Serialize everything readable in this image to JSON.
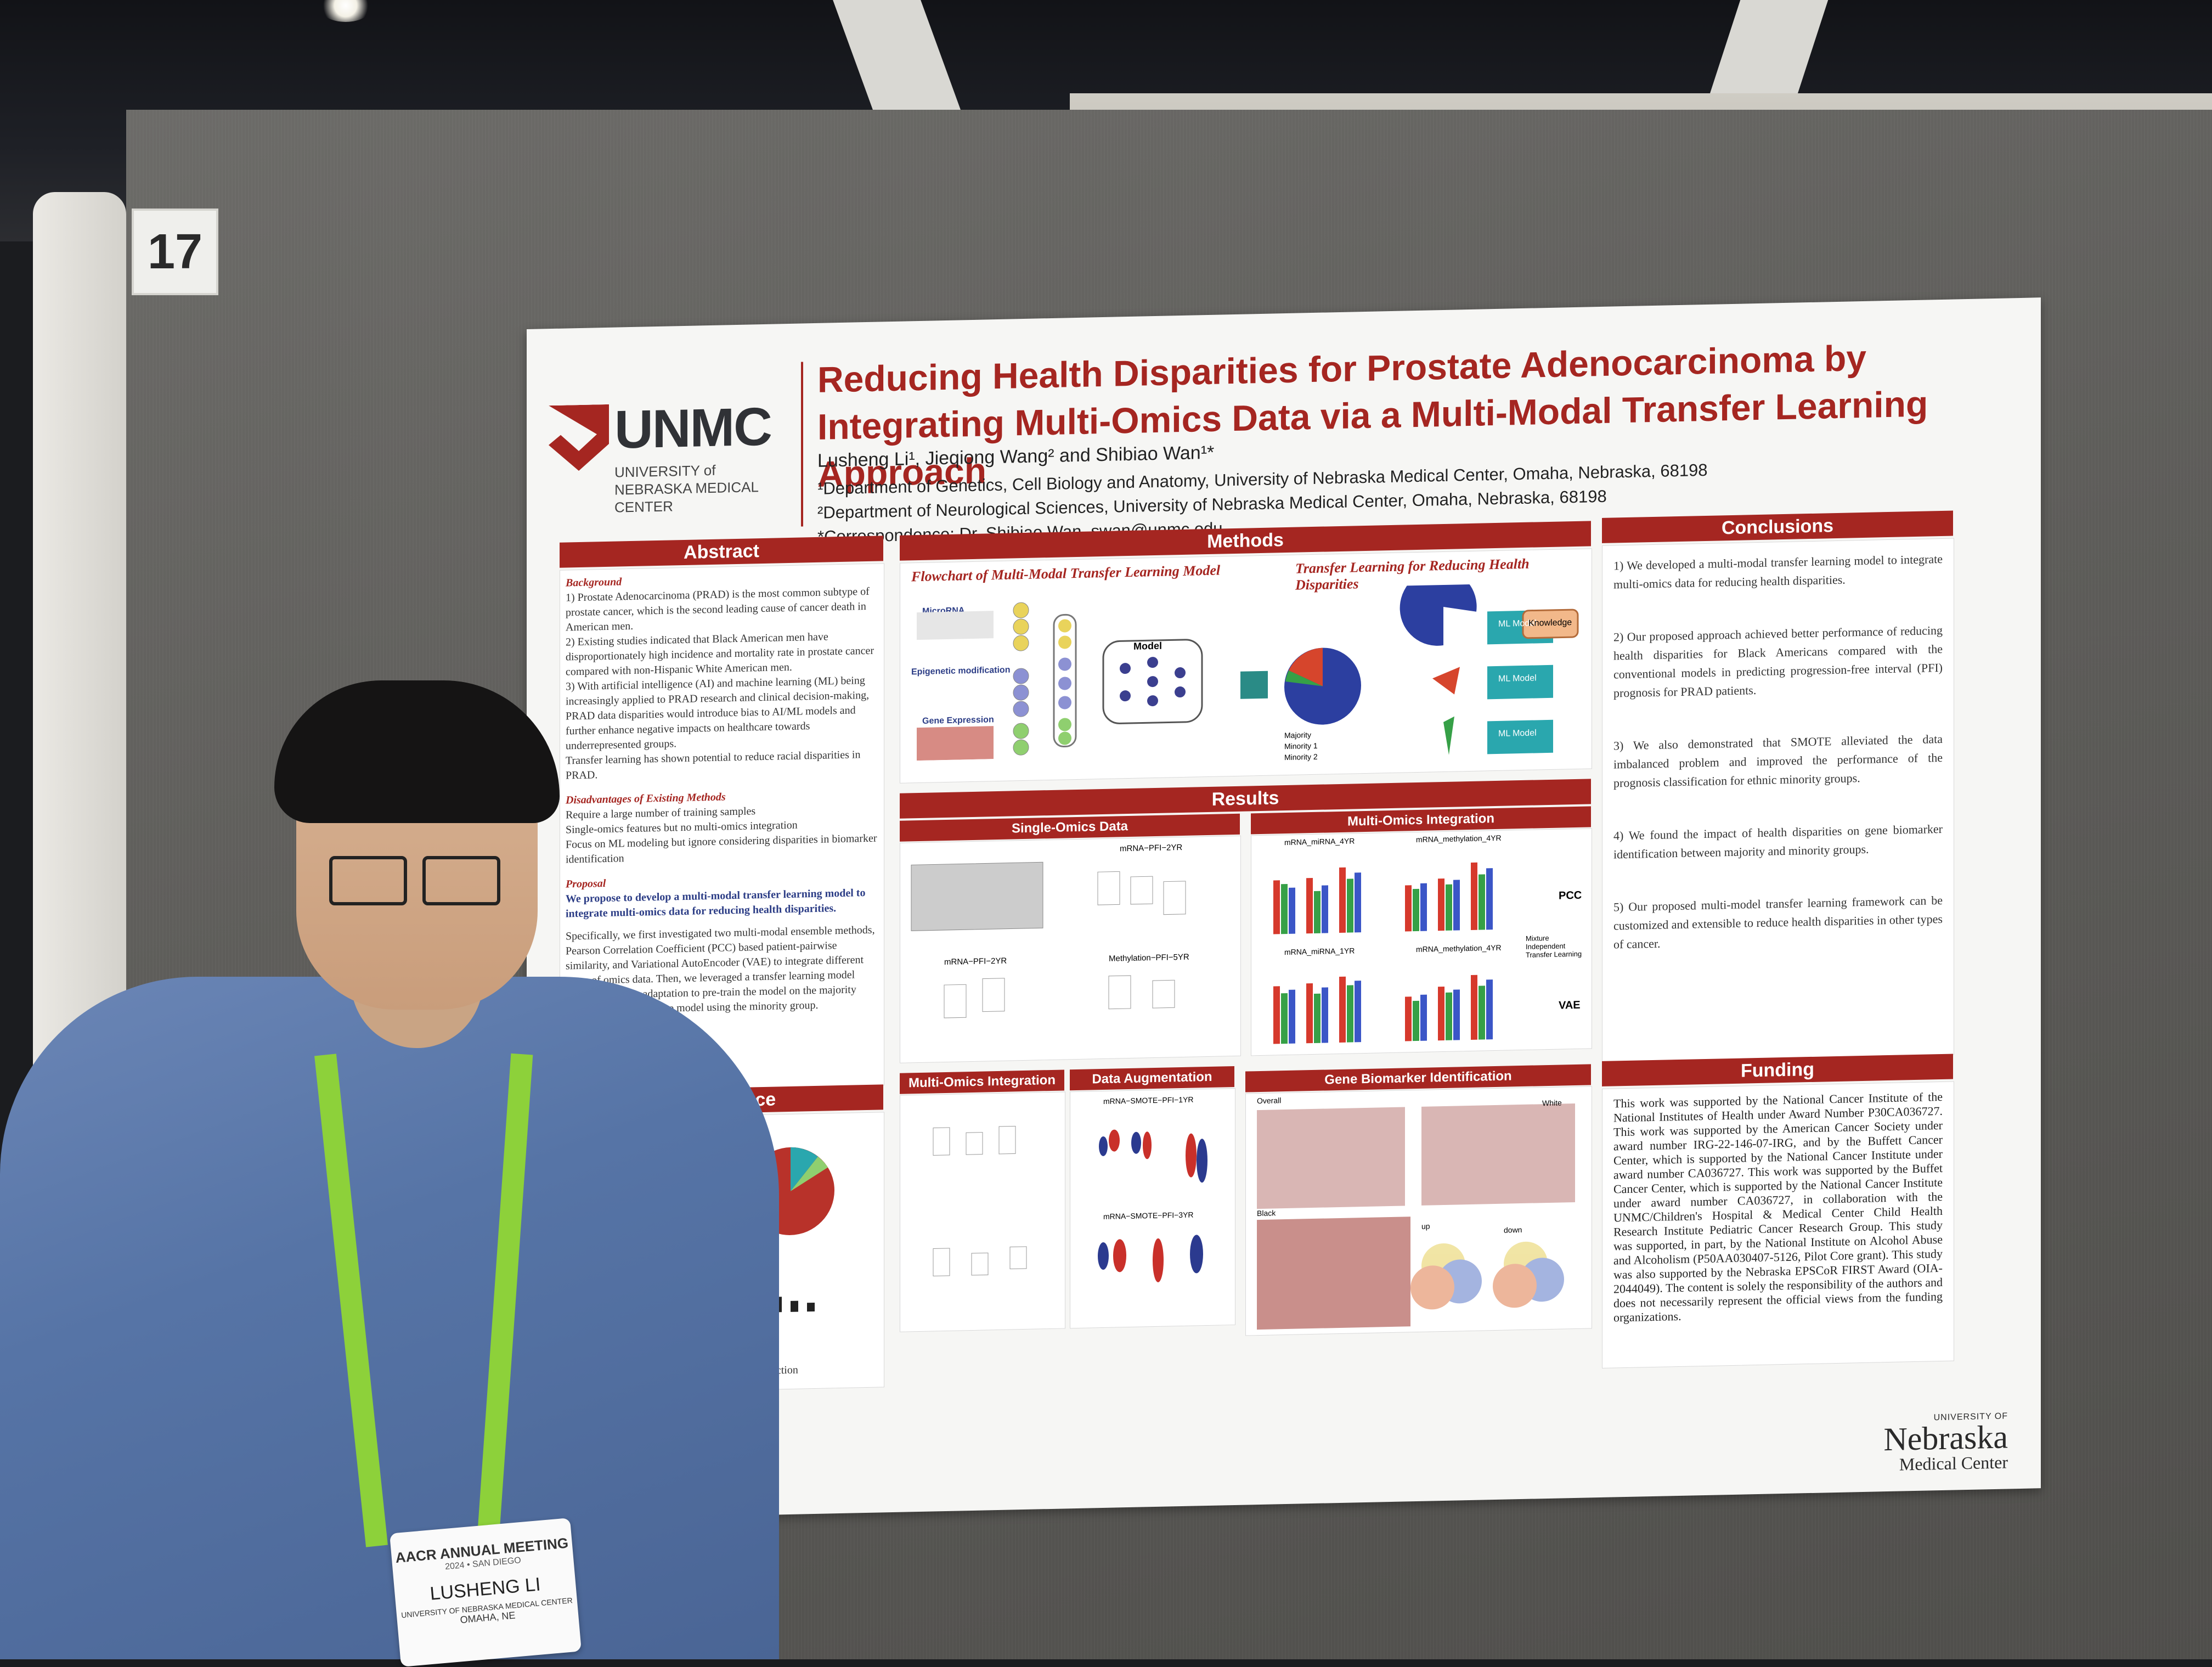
{
  "booth_number": "17",
  "poster": {
    "logo": {
      "name": "UNMC",
      "subtitle": "UNIVERSITY of NEBRASKA MEDICAL CENTER"
    },
    "title": "Reducing Health Disparities for Prostate Adenocarcinoma by Integrating Multi-Omics Data via a Multi-Modal Transfer Learning Approach",
    "authors": "Lusheng Li¹, Jieqiong Wang² and Shibiao Wan¹*",
    "affiliation_1": "¹Department of Genetics, Cell Biology and Anatomy, University of Nebraska Medical Center, Omaha, Nebraska, 68198",
    "affiliation_2": "²Department of Neurological Sciences, University of Nebraska Medical Center, Omaha, Nebraska, 68198",
    "correspondence": "*Correspondence: Dr. Shibiao Wan, swan@unmc.edu",
    "sections": {
      "abstract": "Abstract",
      "methods": "Methods",
      "results": "Results",
      "conclusions": "Conclusions",
      "data_source": "Data Source",
      "funding": "Funding"
    },
    "abstract": {
      "background_head": "Background",
      "background_1": "1) Prostate Adenocarcinoma (PRAD) is the most common subtype of prostate cancer, which is the second leading cause of cancer death in American men.",
      "background_2": "2) Existing studies indicated that Black American men have disproportionately high incidence and mortality rate in prostate cancer compared with non-Hispanic White American men.",
      "background_3": "3) With artificial intelligence (AI) and machine learning (ML) being increasingly applied to PRAD research and clinical decision-making, PRAD data disparities would introduce bias to AI/ML models and further enhance negative impacts on healthcare towards underrepresented groups.",
      "background_4": "Transfer learning has shown potential to reduce racial disparities in PRAD.",
      "disadvantages_head": "Disadvantages of Existing Methods",
      "disadvantages_1": "Require a large number of training samples",
      "disadvantages_2": "Single-omics features but no multi-omics integration",
      "disadvantages_3": "Focus on ML modeling but ignore considering disparities in biomarker identification",
      "proposal_head": "Proposal",
      "proposal_1": "We propose to develop a multi-modal transfer learning model to integrate multi-omics data for reducing health disparities.",
      "proposal_2": "Specifically, we first investigated two multi-modal ensemble methods, Pearson Correlation Coefficient (PCC) based patient-pairwise similarity, and Variational AutoEncoder (VAE) to integrate different types of omics data. Then, we leveraged a transfer learning model based on domain adaptation to pre-train the model on the majority group and fine-tuned the model using the minority group."
    },
    "methods": {
      "flowchart_title": "Flowchart of Multi-Modal Transfer Learning Model",
      "transfer_title": "Transfer Learning for Reducing Health Disparities",
      "labels": {
        "microrna": "MicroRNA",
        "epigenetic": "Epigenetic modification",
        "gene_expression": "Gene Expression",
        "model": "Model",
        "ml_model": "ML Model",
        "knowledge": "Knowledge",
        "majority": "Majority",
        "minority_1": "Minority 1",
        "minority_2": "Minority 2"
      }
    },
    "results": {
      "single_omics": "Single-Omics Data",
      "multi_omics_integration": "Multi-Omics Integration",
      "multi_omics_integration_2": "Multi-Omics Integration",
      "data_augmentation": "Data Augmentation",
      "gene_biomarker": "Gene Biomarker Identification",
      "pcc": "PCC",
      "vae": "VAE",
      "legend_mixture": "Mixture",
      "legend_independent": "Independent",
      "legend_transfer": "Transfer Learning",
      "plot_labels": {
        "mrna_pfi_2yr": "mRNA−PFI−2YR",
        "mrna_pfi_2yr_b": "mRNA−PFI−2YR",
        "methylation_pfi_5yr": "Methylation−PFI−5YR",
        "mrna_mirna_4yr": "mRNA_miRNA_4YR",
        "mrna_methylation_4yr": "mRNA_methylation_4YR",
        "mrna_mirna_1yr": "mRNA_miRNA_1YR",
        "mrna_methylation_4yr_b": "mRNA_methylation_4YR",
        "smote_pfi_1yr": "mRNA−SMOTE−PFI−1YR",
        "smote_pfi_3yr": "mRNA−SMOTE−PFI−3YR",
        "overall": "Overall",
        "white": "White",
        "black": "Black",
        "up": "up",
        "down": "down"
      }
    },
    "conclusions": {
      "item_1": "1) We developed a multi-modal transfer learning model to integrate multi-omics data for reducing health disparities.",
      "item_2": "2) Our proposed approach achieved better performance of reducing health disparities for Black Americans compared with the conventional models in predicting progression-free interval (PFI) prognosis for PRAD patients.",
      "item_3": "3) We also demonstrated that SMOTE alleviated the data imbalanced problem and improved the performance of the prognosis classification for ethnic minority groups.",
      "item_4": "4) We found the impact of health disparities on gene biomarker identification between majority and minority groups.",
      "item_5": "5) Our proposed multi-model transfer learning framework can be customized and extensible to reduce health disparities in other types of cancer."
    },
    "funding_text": "This work was supported by the National Cancer Institute of the National Institutes of Health under Award Number P30CA036727. This work was supported by the American Cancer Society under award number IRG-22-146-07-IRG, and by the Buffett Cancer Center, which is supported by the National Cancer Institute under award number CA036727. This work was supported by the Buffet Cancer Center, which is supported by the National Cancer Institute under award number CA036727, in collaboration with the UNMC/Children's Hospital & Medical Center Child Health Research Institute Pediatric Cancer Research Group. This study was supported, in part, by the National Institute on Alcohol Abuse and Alcoholism (P50AA030407-5126, Pilot Core grant). This study was also supported by the Nebraska EPSCoR FIRST Award (OIA-2044049). The content is solely the responsibility of the authors and does not necessarily represent the official views from the funding organizations.",
    "data_source_caption": "ous prediction",
    "footer_logo": {
      "line1": "UNIVERSITY OF",
      "line2": "Nebraska",
      "line3": "Medical Center"
    }
  },
  "badge": {
    "event": "AACR ANNUAL MEETING",
    "year_place": "2024 • SAN DIEGO",
    "name": "LUSHENG LI",
    "institution": "UNIVERSITY OF NEBRASKA MEDICAL CENTER",
    "city": "OMAHA, NE"
  },
  "colors": {
    "accent_red": "#a52621",
    "highlight_blue": "#2c3d86",
    "lanyard_green": "#8dd13a",
    "bar_red": "#d6392c",
    "bar_green": "#36a047",
    "bar_blue": "#3b56c7",
    "node_yellow": "#e9d35b",
    "node_purple": "#8c91d3",
    "node_green": "#8fcf6f",
    "teal": "#2aa7ae",
    "pie_blue": "#2c3fa0",
    "pie_red": "#d6452c"
  }
}
